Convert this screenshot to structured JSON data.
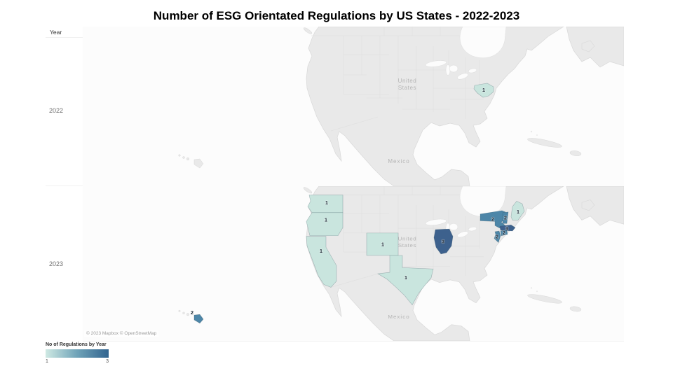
{
  "title": "Number of ESG Orientated Regulations by US States - 2022-2023",
  "axis": {
    "header": "Year",
    "rows": [
      "2022",
      "2023"
    ]
  },
  "legend": {
    "title": "No of Regulations by Year",
    "min_label": "1",
    "max_label": "3",
    "gradient_start": "#cfe9e3",
    "gradient_mid": "#6fa3b8",
    "gradient_end": "#31648f"
  },
  "attribution": "© 2023 Mapbox © OpenStreetMap",
  "map_labels": {
    "country_line1": "United",
    "country_line2": "States",
    "mexico": "Mexico"
  },
  "chart_data": {
    "type": "choropleth_map",
    "title": "Number of ESG Orientated Regulations by US States - 2022-2023",
    "facet_field": "Year",
    "measure": "No of Regulations by Year",
    "color_scale": {
      "min": 1,
      "max": 3,
      "1": "#c9e5de",
      "2": "#4d86a8",
      "3": "#3d618d"
    },
    "years": [
      {
        "year": "2022",
        "states": [
          {
            "name": "Maryland",
            "value": 1
          }
        ]
      },
      {
        "year": "2023",
        "states": [
          {
            "name": "Washington",
            "value": 1
          },
          {
            "name": "Oregon",
            "value": 1
          },
          {
            "name": "California",
            "value": 1
          },
          {
            "name": "Colorado",
            "value": 1
          },
          {
            "name": "Texas",
            "value": 1
          },
          {
            "name": "Illinois",
            "value": 3
          },
          {
            "name": "New York",
            "value": 2
          },
          {
            "name": "Vermont",
            "value": 2
          },
          {
            "name": "Maine",
            "value": 1
          },
          {
            "name": "Massachusetts",
            "value": 3
          },
          {
            "name": "Connecticut",
            "value": 2
          },
          {
            "name": "New Jersey",
            "value": 2
          },
          {
            "name": "Hawaii",
            "value": 2
          }
        ]
      }
    ]
  }
}
